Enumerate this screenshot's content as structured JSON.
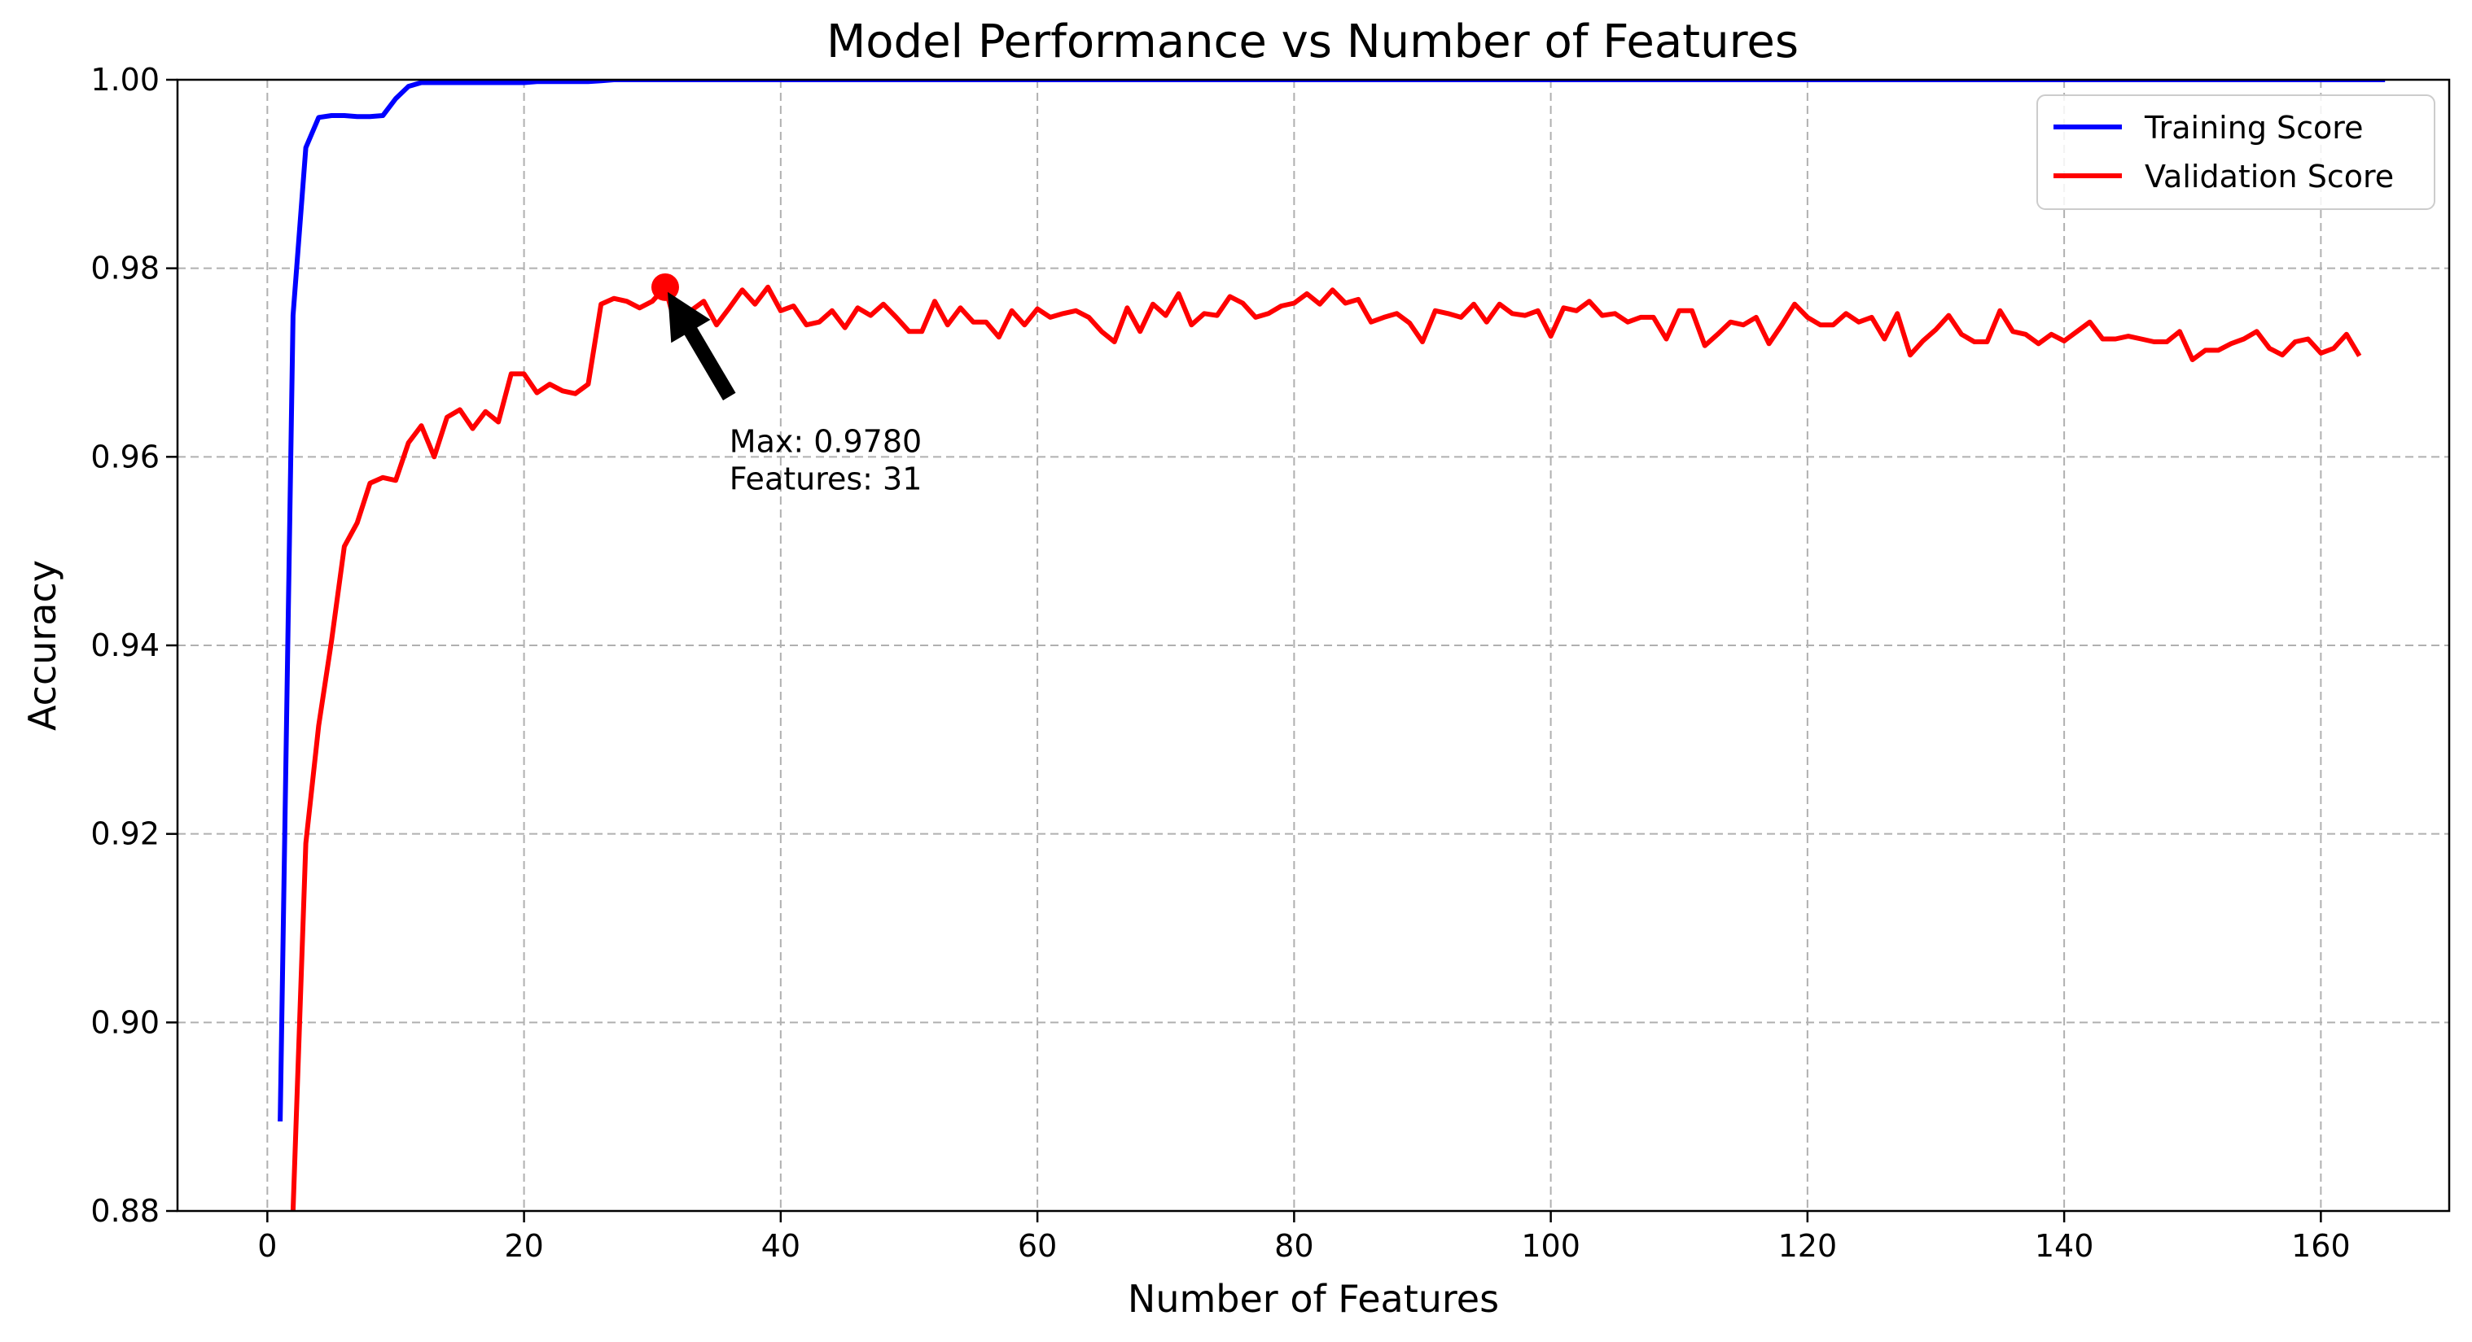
{
  "chart_data": {
    "type": "line",
    "title": "Model Performance vs Number of Features",
    "xlabel": "Number of Features",
    "ylabel": "Accuracy",
    "xlim": [
      -7,
      170
    ],
    "ylim": [
      0.88,
      1.0
    ],
    "x_ticks": [
      0,
      20,
      40,
      60,
      80,
      100,
      120,
      140,
      160
    ],
    "y_ticks": [
      0.88,
      0.9,
      0.92,
      0.94,
      0.96,
      0.98,
      1.0
    ],
    "y_tick_labels": [
      "0.88",
      "0.90",
      "0.92",
      "0.94",
      "0.96",
      "0.98",
      "1.00"
    ],
    "grid": true,
    "legend_position": "top-right",
    "series": [
      {
        "name": "Training Score",
        "color": "#0000ff",
        "x_start": 1,
        "values": [
          0.8895,
          0.975,
          0.9928,
          0.996,
          0.9962,
          0.9962,
          0.9961,
          0.9961,
          0.9962,
          0.998,
          0.9993,
          0.9997,
          0.9997,
          0.9997,
          0.9997,
          0.9997,
          0.9997,
          0.9997,
          0.9997,
          0.9997,
          0.9998,
          0.9998,
          0.9998,
          0.9998,
          0.9998,
          0.9999,
          1.0,
          1.0,
          1.0,
          1.0,
          1.0,
          1.0,
          1.0,
          1.0,
          1.0,
          1.0,
          1.0,
          1.0,
          1.0,
          1.0,
          1.0,
          1.0,
          1.0,
          1.0,
          1.0,
          1.0,
          1.0,
          1.0,
          1.0,
          1.0,
          1.0,
          1.0,
          1.0,
          1.0,
          1.0,
          1.0,
          1.0,
          1.0,
          1.0,
          1.0,
          1.0,
          1.0,
          1.0,
          1.0,
          1.0,
          1.0,
          1.0,
          1.0,
          1.0,
          1.0,
          1.0,
          1.0,
          1.0,
          1.0,
          1.0,
          1.0,
          1.0,
          1.0,
          1.0,
          1.0,
          1.0,
          1.0,
          1.0,
          1.0,
          1.0,
          1.0,
          1.0,
          1.0,
          1.0,
          1.0,
          1.0,
          1.0,
          1.0,
          1.0,
          1.0,
          1.0,
          1.0,
          1.0,
          1.0,
          1.0,
          1.0,
          1.0,
          1.0,
          1.0,
          1.0,
          1.0,
          1.0,
          1.0,
          1.0,
          1.0,
          1.0,
          1.0,
          1.0,
          1.0,
          1.0,
          1.0,
          1.0,
          1.0,
          1.0,
          1.0,
          1.0,
          1.0,
          1.0,
          1.0,
          1.0,
          1.0,
          1.0,
          1.0,
          1.0,
          1.0,
          1.0,
          1.0,
          1.0,
          1.0,
          1.0,
          1.0,
          1.0,
          1.0,
          1.0,
          1.0,
          1.0,
          1.0,
          1.0,
          1.0,
          1.0,
          1.0,
          1.0,
          1.0,
          1.0,
          1.0,
          1.0,
          1.0,
          1.0,
          1.0,
          1.0,
          1.0,
          1.0,
          1.0,
          1.0,
          1.0,
          1.0,
          1.0,
          1.0,
          1.0,
          1.0
        ]
      },
      {
        "name": "Validation Score",
        "color": "#ff0000",
        "x_start": 1,
        "values": [
          0.86,
          0.88,
          0.919,
          0.9315,
          0.9405,
          0.9505,
          0.953,
          0.9572,
          0.9578,
          0.9575,
          0.9615,
          0.9633,
          0.96,
          0.9642,
          0.965,
          0.963,
          0.9648,
          0.9637,
          0.9688,
          0.9688,
          0.9668,
          0.9677,
          0.967,
          0.9667,
          0.9677,
          0.9762,
          0.9768,
          0.9765,
          0.9758,
          0.9765,
          0.978,
          0.973,
          0.9755,
          0.9765,
          0.974,
          0.9758,
          0.9777,
          0.9762,
          0.978,
          0.9755,
          0.976,
          0.974,
          0.9743,
          0.9755,
          0.9737,
          0.9758,
          0.975,
          0.9762,
          0.9748,
          0.9733,
          0.9733,
          0.9765,
          0.974,
          0.9758,
          0.9743,
          0.9743,
          0.9727,
          0.9755,
          0.974,
          0.9757,
          0.9748,
          0.9752,
          0.9755,
          0.9748,
          0.9733,
          0.9722,
          0.9758,
          0.9733,
          0.9762,
          0.975,
          0.9773,
          0.974,
          0.9752,
          0.975,
          0.977,
          0.9763,
          0.9748,
          0.9752,
          0.976,
          0.9763,
          0.9773,
          0.9762,
          0.9777,
          0.9763,
          0.9767,
          0.9743,
          0.9748,
          0.9752,
          0.9742,
          0.9722,
          0.9755,
          0.9752,
          0.9748,
          0.9762,
          0.9743,
          0.9762,
          0.9752,
          0.975,
          0.9755,
          0.9728,
          0.9758,
          0.9755,
          0.9765,
          0.975,
          0.9752,
          0.9743,
          0.9748,
          0.9748,
          0.9725,
          0.9755,
          0.9755,
          0.9718,
          0.973,
          0.9743,
          0.974,
          0.9748,
          0.972,
          0.974,
          0.9762,
          0.9748,
          0.974,
          0.974,
          0.9752,
          0.9743,
          0.9748,
          0.9725,
          0.9752,
          0.9708,
          0.9723,
          0.9735,
          0.975,
          0.973,
          0.9722,
          0.9722,
          0.9755,
          0.9733,
          0.973,
          0.972,
          0.973,
          0.9723,
          0.9733,
          0.9743,
          0.9725,
          0.9725,
          0.9728,
          0.9725,
          0.9722,
          0.9722,
          0.9733,
          0.9703,
          0.9713,
          0.9713,
          0.972,
          0.9725,
          0.9733,
          0.9715,
          0.9708,
          0.9722,
          0.9725,
          0.971,
          0.9715,
          0.973,
          0.9707
        ]
      }
    ],
    "marker": {
      "x": 31,
      "y": 0.978,
      "color": "#ff0000"
    },
    "annotation": {
      "lines": [
        "Max: 0.9780",
        "Features: 31"
      ],
      "text_anchor": {
        "x": 36,
        "y": 0.965
      }
    }
  }
}
